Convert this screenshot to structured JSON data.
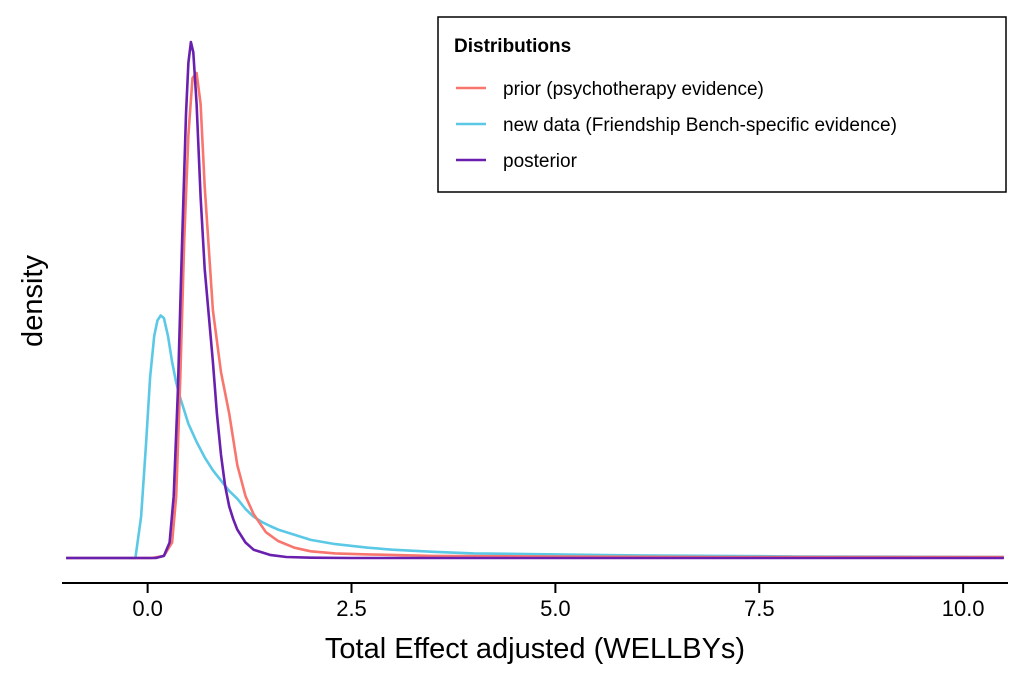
{
  "chart_data": {
    "type": "line",
    "xlabel": "Total Effect adjusted (WELLBYs)",
    "ylabel": "density",
    "xlim": [
      -1.05,
      10.55
    ],
    "ylim": [
      0,
      1.0
    ],
    "xticks": [
      0.0,
      2.5,
      5.0,
      7.5,
      10.0
    ],
    "xtick_labels": [
      "0.0",
      "2.5",
      "5.0",
      "7.5",
      "10.0"
    ],
    "grid": false,
    "legend": {
      "title": "Distributions",
      "position": "top-right"
    },
    "series": [
      {
        "name": "prior (psychotherapy evidence)",
        "color": "#F8766D",
        "x": [
          -1.0,
          0.05,
          0.2,
          0.3,
          0.35,
          0.4,
          0.45,
          0.5,
          0.55,
          0.6,
          0.65,
          0.7,
          0.75,
          0.8,
          0.9,
          1.0,
          1.1,
          1.2,
          1.3,
          1.45,
          1.6,
          1.8,
          2.0,
          2.3,
          2.7,
          3.5,
          5.0,
          7.0,
          10.5
        ],
        "y": [
          0.0,
          0.0,
          0.004,
          0.03,
          0.12,
          0.35,
          0.62,
          0.82,
          0.93,
          0.94,
          0.88,
          0.72,
          0.6,
          0.48,
          0.36,
          0.28,
          0.18,
          0.12,
          0.085,
          0.05,
          0.033,
          0.02,
          0.013,
          0.009,
          0.007,
          0.004,
          0.003,
          0.002,
          0.002
        ]
      },
      {
        "name": "new data (Friendship Bench-specific evidence)",
        "color": "#5BC8E6",
        "x": [
          -1.0,
          -0.15,
          -0.08,
          -0.02,
          0.03,
          0.08,
          0.12,
          0.16,
          0.2,
          0.25,
          0.3,
          0.35,
          0.4,
          0.5,
          0.6,
          0.7,
          0.8,
          0.9,
          1.0,
          1.1,
          1.2,
          1.3,
          1.4,
          1.5,
          1.6,
          1.8,
          2.0,
          2.3,
          2.7,
          3.0,
          3.5,
          4.0,
          5.0,
          6.0,
          7.0,
          8.0,
          10.5
        ],
        "y": [
          0.0,
          0.0,
          0.08,
          0.22,
          0.35,
          0.43,
          0.46,
          0.47,
          0.465,
          0.43,
          0.38,
          0.34,
          0.31,
          0.26,
          0.225,
          0.195,
          0.17,
          0.15,
          0.13,
          0.115,
          0.095,
          0.08,
          0.07,
          0.062,
          0.055,
          0.045,
          0.035,
          0.027,
          0.02,
          0.016,
          0.012,
          0.009,
          0.007,
          0.005,
          0.004,
          0.003,
          0.002
        ]
      },
      {
        "name": "posterior",
        "color": "#6A20AF",
        "x": [
          -1.0,
          0.1,
          0.2,
          0.27,
          0.32,
          0.37,
          0.42,
          0.47,
          0.5,
          0.53,
          0.56,
          0.6,
          0.65,
          0.7,
          0.75,
          0.8,
          0.85,
          0.9,
          0.95,
          1.0,
          1.05,
          1.1,
          1.2,
          1.3,
          1.5,
          1.7,
          2.0,
          2.5,
          10.5
        ],
        "y": [
          0.0,
          0.0,
          0.004,
          0.03,
          0.12,
          0.32,
          0.6,
          0.86,
          0.96,
          1.0,
          0.98,
          0.88,
          0.7,
          0.56,
          0.47,
          0.38,
          0.28,
          0.2,
          0.14,
          0.1,
          0.075,
          0.055,
          0.03,
          0.016,
          0.006,
          0.002,
          0.0005,
          0.0,
          0.0
        ]
      }
    ]
  }
}
